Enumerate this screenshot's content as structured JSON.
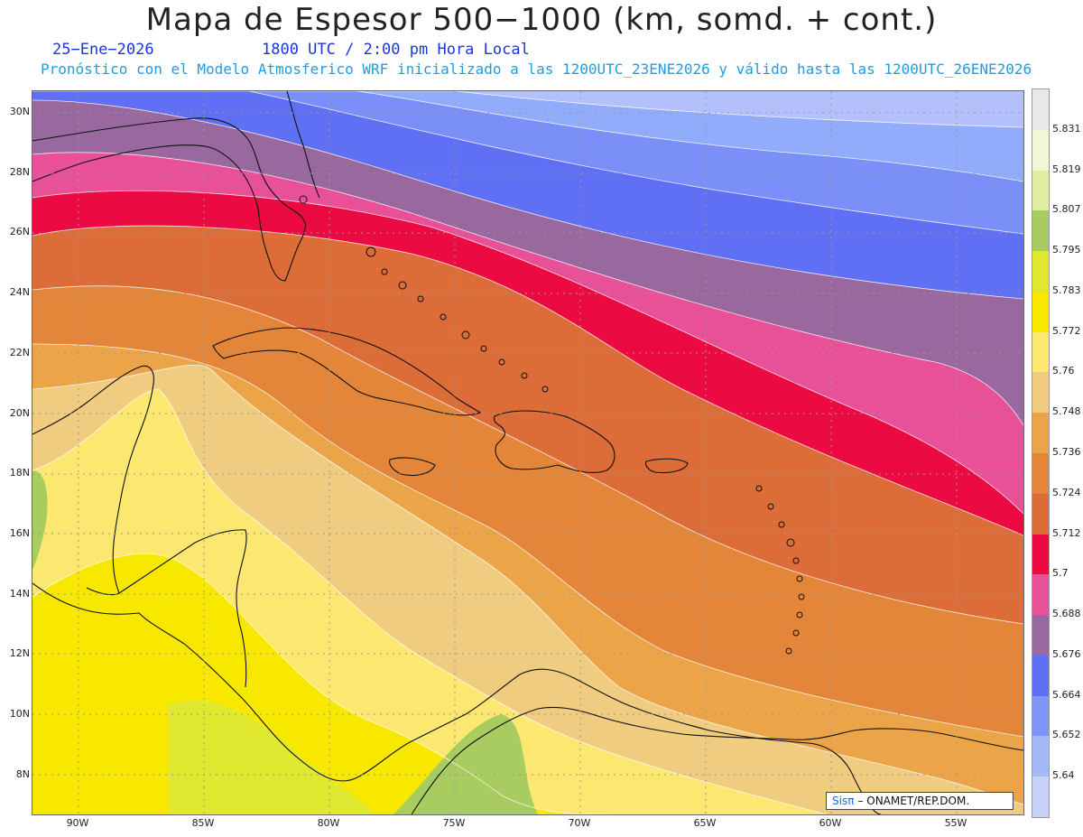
{
  "header": {
    "title": "Mapa de Espesor 500−1000 (km, somd. + cont.)",
    "date": "25−Ene−2026",
    "time": "1800 UTC / 2:00 pm Hora Local",
    "description": "Pronóstico con el Modelo Atmosferico WRF inicializado a las 1200UTC_23ENE2026 y válido hasta las  1200UTC_26ENE2026"
  },
  "axes": {
    "lat_labels": [
      "30N",
      "28N",
      "26N",
      "24N",
      "22N",
      "20N",
      "18N",
      "16N",
      "14N",
      "12N",
      "10N",
      "8N"
    ],
    "lon_labels": [
      "90W",
      "85W",
      "80W",
      "75W",
      "70W",
      "65W",
      "60W",
      "55W"
    ]
  },
  "colorbar": {
    "labels": [
      "5.831",
      "5.819",
      "5.807",
      "5.795",
      "5.783",
      "5.772",
      "5.76",
      "5.748",
      "5.736",
      "5.724",
      "5.712",
      "5.7",
      "5.688",
      "5.676",
      "5.664",
      "5.652",
      "5.64"
    ],
    "colors": [
      "#e8e8e8",
      "#f2f7d8",
      "#e0f0a0",
      "#a8cc60",
      "#e0e830",
      "#f8e800",
      "#fce870",
      "#f0cc80",
      "#eca448",
      "#e4863a",
      "#dc6c38",
      "#ec0a42",
      "#e85098",
      "#98689e",
      "#6070f4",
      "#7e96f8",
      "#a4baf8",
      "#c8d2f8"
    ]
  },
  "map_colors": {
    "lavender": "#b4c0fb",
    "light_blue": "#90acfa",
    "mid_blue": "#7a90f8",
    "blue": "#6070f4",
    "purple": "#98689e",
    "pink": "#e85098",
    "red": "#ec0a42",
    "dark_orange": "#dc6c38",
    "orange": "#e4863a",
    "light_orange": "#eca448",
    "tan": "#f0cc80",
    "pale_yellow": "#fce870",
    "yellow": "#f8e800",
    "lime": "#e0e830",
    "green": "#a8cc60"
  },
  "credit": {
    "brand": "Sisπ",
    "text": "– ONAMET/REP.DOM."
  }
}
